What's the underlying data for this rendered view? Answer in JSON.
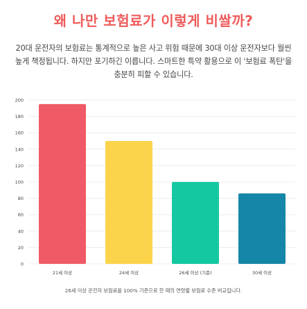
{
  "title": "왜 나만 보험료가 이렇게 비쌀까?",
  "description": "20대 운전자의 보험료는 통계적으로 높은 사고 위험 때문에 30대 이상 운전자보다 월씬 높게 책정됩니다. 하지만 포기하긴 이릅니다. 스마트한 특약 활용으로 이 '보험료 폭탄'을 충분히 피할 수 있습니다.",
  "footnote": "26세 이상 운전자 보험료를 100% 기준으로 한 때의 연령별 보험료 수준 비교입니다.",
  "chart_data": {
    "type": "bar",
    "categories": [
      "21세 이상",
      "24세 이상",
      "26세 이상 (기준)",
      "30세 이상"
    ],
    "values": [
      195,
      150,
      100,
      86
    ],
    "colors": [
      "#f05a66",
      "#fcd44b",
      "#14c9a2",
      "#1586a8"
    ],
    "yticks": [
      0,
      20,
      40,
      60,
      80,
      100,
      120,
      140,
      160,
      180,
      200
    ],
    "ylim": [
      0,
      200
    ],
    "grid": true,
    "legend": "none"
  }
}
